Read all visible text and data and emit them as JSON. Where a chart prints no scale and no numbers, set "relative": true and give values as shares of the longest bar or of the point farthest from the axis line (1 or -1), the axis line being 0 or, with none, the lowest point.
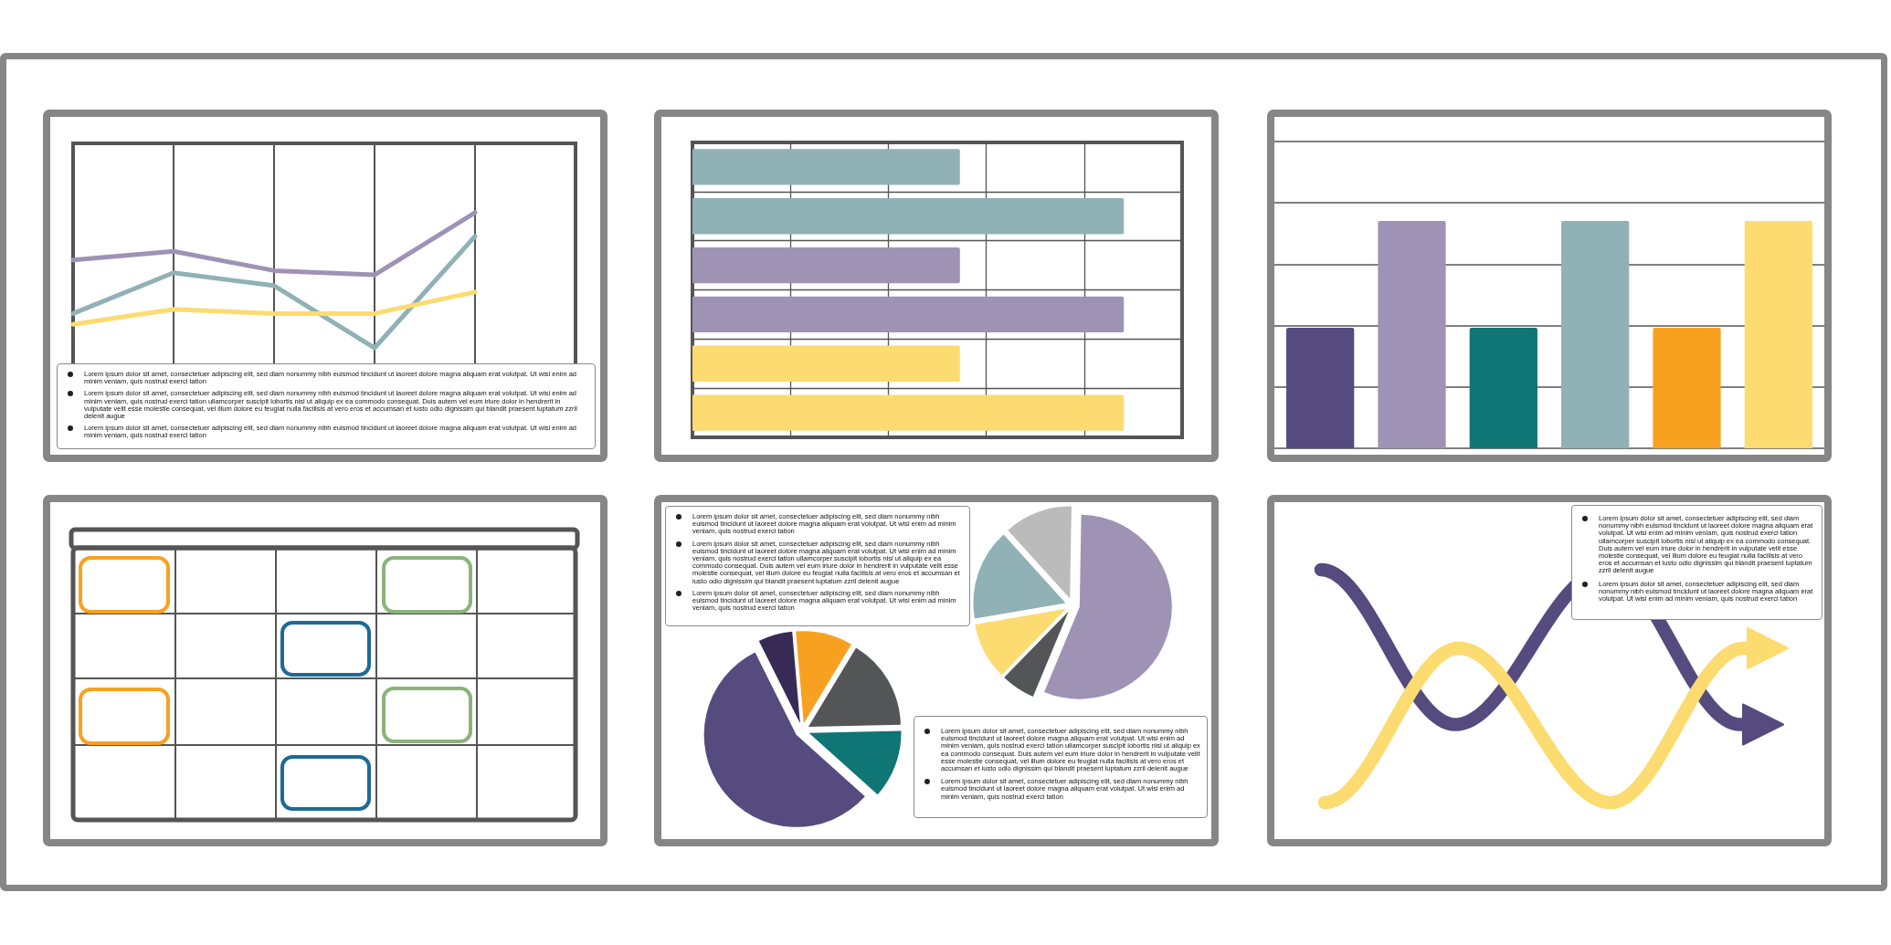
{
  "chart_data": [
    {
      "type": "line",
      "relative": true,
      "categories": [
        null,
        null,
        null,
        null,
        null,
        null
      ],
      "grid": "x",
      "marker": "none",
      "series": [
        {
          "color": "#9e93b5",
          "values": [
            0.78,
            0.82,
            0.73,
            0.71,
            1,
            null
          ]
        },
        {
          "color": "#90b1b6",
          "values": [
            0.53,
            0.72,
            0.66,
            0.37,
            0.89,
            null
          ]
        },
        {
          "color": "#fcdb70",
          "values": [
            0.48,
            0.55,
            0.53,
            0.53,
            0.63,
            null
          ]
        }
      ],
      "annotations": [
        "Lorem ipsum dolor sit amet, consectetuer adipiscing elit, sed diam nonummy nibh euismod tincidunt ut laoreet dolore magna aliquam erat volutpat. Ut wisi enim ad minim veniam, quis nostrud exerci tation",
        "Lorem ipsum dolor sit amet, consectetuer adipiscing elit, sed diam nonummy nibh euismod tincidunt ut laoreet dolore magna aliquam erat volutpat. Ut wisi enim ad minim veniam, quis nostrud exerci tation ullamcorper suscipit lobortis nisl ut aliquip ex ea commodo consequat. Duis autem vel eum iriure dolor in hendrerit in vulputate velit esse molestie consequat, vel illum dolore eu feugiat nulla facilisis at vero eros et accumsan et iusto odio dignissim qui blandit praesent luptatum zzril delenit augue",
        "Lorem ipsum dolor sit amet, consectetuer adipiscing elit, sed diam nonummy nibh euismod tincidunt ut laoreet dolore magna aliquam erat volutpat. Ut wisi enim ad minim veniam, quis nostrud exerci tation"
      ]
    },
    {
      "type": "bar",
      "orientation": "horizontal",
      "relative": true,
      "categories": [
        null,
        null,
        null,
        null,
        null,
        null
      ],
      "values": [
        0.62,
        1,
        0.62,
        1,
        0.62,
        1
      ],
      "colors": [
        "#90b1b6",
        "#90b1b6",
        "#9e93b5",
        "#9e93b5",
        "#fcdb70",
        "#fcdb70"
      ],
      "grid": true
    },
    {
      "type": "bar",
      "relative": true,
      "categories": [
        null,
        null,
        null,
        null,
        null,
        null
      ],
      "values": [
        0.53,
        1,
        0.53,
        1,
        0.53,
        1
      ],
      "colors": [
        "#554b7f",
        "#9e93b5",
        "#0f7575",
        "#90b1b6",
        "#f8a121",
        "#fcdb70"
      ],
      "grid": "y"
    },
    {
      "type": "pie",
      "categories": [
        null,
        null,
        null,
        null,
        null
      ],
      "values": [
        6,
        10,
        16,
        12,
        56
      ],
      "colors": [
        "#372b55",
        "#f8a121",
        "#545557",
        "#0f7575",
        "#554b7f"
      ],
      "annotations": [
        "Lorem ipsum dolor sit amet, consectetuer adipiscing elit, sed diam nonummy nibh euismod tincidunt ut laoreet dolore magna aliquam erat volutpat. Ut wisi enim ad minim veniam, quis nostrud exerci tation",
        "Lorem ipsum dolor sit amet, consectetuer adipiscing elit, sed diam nonummy nibh euismod tincidunt ut laoreet dolore magna aliquam erat volutpat. Ut wisi enim ad minim veniam, quis nostrud exerci tation ullamcorper suscipit lobortis nisl ut aliquip ex ea commodo consequat. Duis autem vel eum iriure dolor in hendrerit in vulputate velit esse molestie consequat, vel illum dolore eu feugiat nulla facilisis at vero eros et accumsan et iusto odio dignissim qui blandit praesent luptatum zzril delenit augue",
        "Lorem ipsum dolor sit amet, consectetuer adipiscing elit, sed diam nonummy nibh euismod tincidunt ut laoreet dolore magna aliquam erat volutpat. Ut wisi enim ad minim veniam, quis nostrud exerci tation"
      ]
    },
    {
      "type": "pie",
      "categories": [
        null,
        null,
        null,
        null,
        null
      ],
      "values": [
        56,
        6,
        10,
        16,
        12
      ],
      "colors": [
        "#9e93b5",
        "#545557",
        "#fcdb70",
        "#90b1b6",
        "#bcbbbc"
      ],
      "annotations": [
        "Lorem ipsum dolor sit amet, consectetuer adipiscing elit, sed diam nonummy nibh euismod tincidunt ut laoreet dolore magna aliquam erat volutpat. Ut wisi enim ad minim veniam, quis nostrud exerci tation ullamcorper suscipit lobortis nisl ut aliquip ex ea commodo consequat. Duis autem vel eum iriure dolor in hendrerit in vulputate velit esse molestie consequat, vel illum dolore eu feugiat nulla facilisis at vero eros et accumsan et iusto odio dignissim qui blandit praesent luptatum zzril delenit augue",
        "Lorem ipsum dolor sit amet, consectetuer adipiscing elit, sed diam nonummy nibh euismod tincidunt ut laoreet dolore magna aliquam erat volutpat. Ut wisi enim ad minim veniam, quis nostrud exerci tation"
      ]
    },
    {
      "type": "other",
      "annotations": [
        "Lorem ipsum dolor sit amet, consectetuer adipiscing elit, sed diam nonummy nibh euismod tincidunt ut laoreet dolore magna aliquam erat volutpat. Ut wisi enim ad minim veniam, quis nostrud exerci tation ullamcorper suscipit lobortis nisl ut aliquip ex ea commodo consequat. Duis autem vel eum iriure dolor in hendrerit in vulputate velit esse molestie consequat, vel illum dolore eu feugiat nulla facilisis at vero eros et accumsan et iusto odio dignissim qui blandit praesent luptatum zzril delenit augue",
        "Lorem ipsum dolor sit amet, consectetuer adipiscing elit, sed diam nonummy nibh euismod tincidunt ut laoreet dolore magna aliquam erat volutpat. Ut wisi enim ad minim veniam, quis nostrud exerci tation"
      ]
    }
  ]
}
